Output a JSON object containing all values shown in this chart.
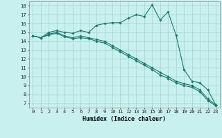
{
  "title": "",
  "xlabel": "Humidex (Indice chaleur)",
  "bg_color": "#c8f0ee",
  "grid_color": "#a8d8d4",
  "line_color": "#1a7a6e",
  "x_values": [
    0,
    1,
    2,
    3,
    4,
    5,
    6,
    7,
    8,
    9,
    10,
    11,
    12,
    13,
    14,
    15,
    16,
    17,
    18,
    19,
    20,
    21,
    22,
    23
  ],
  "series1": [
    14.6,
    14.4,
    15.0,
    15.2,
    15.0,
    14.9,
    15.2,
    15.0,
    15.8,
    16.0,
    16.1,
    16.1,
    16.6,
    17.0,
    16.8,
    18.1,
    16.4,
    17.3,
    14.7,
    10.8,
    9.5,
    9.3,
    8.5,
    6.8
  ],
  "series2": [
    14.6,
    14.4,
    14.8,
    15.0,
    14.6,
    14.4,
    14.6,
    14.4,
    14.2,
    14.0,
    13.5,
    13.0,
    12.5,
    12.0,
    11.5,
    11.0,
    10.5,
    10.0,
    9.5,
    9.2,
    9.0,
    8.5,
    7.5,
    6.8
  ],
  "series3": [
    14.6,
    14.4,
    14.7,
    14.9,
    14.5,
    14.3,
    14.4,
    14.3,
    14.0,
    13.8,
    13.3,
    12.8,
    12.3,
    11.8,
    11.3,
    10.8,
    10.2,
    9.8,
    9.3,
    9.0,
    8.8,
    8.3,
    7.3,
    6.7
  ],
  "xlim": [
    -0.5,
    23.5
  ],
  "ylim": [
    6.5,
    18.5
  ],
  "yticks": [
    7,
    8,
    9,
    10,
    11,
    12,
    13,
    14,
    15,
    16,
    17,
    18
  ],
  "xticks": [
    0,
    1,
    2,
    3,
    4,
    5,
    6,
    7,
    8,
    9,
    10,
    11,
    12,
    13,
    14,
    15,
    16,
    17,
    18,
    19,
    20,
    21,
    22,
    23
  ],
  "xlabel_fontsize": 6.0,
  "tick_fontsize": 5.0
}
